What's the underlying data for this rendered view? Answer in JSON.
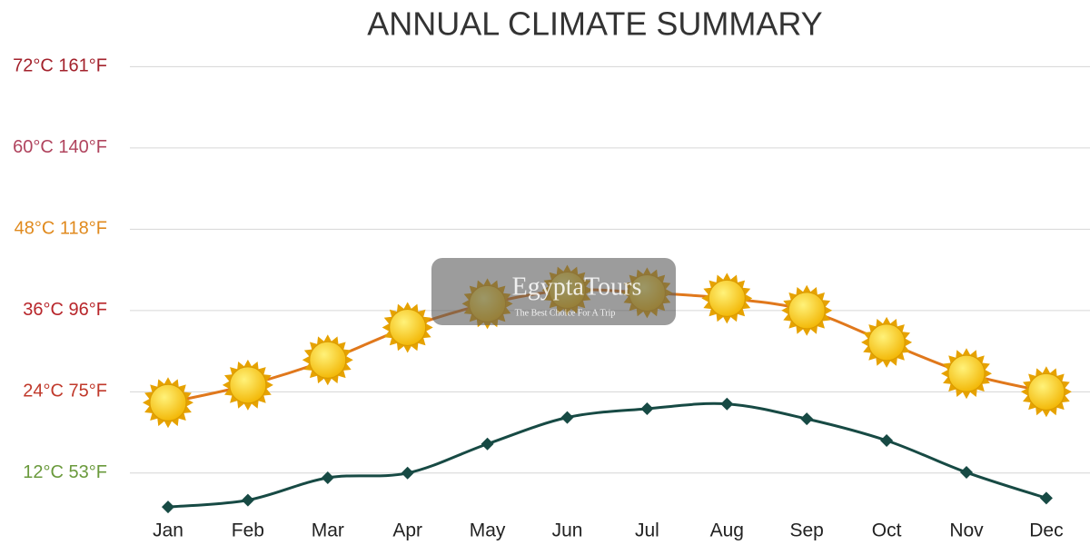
{
  "chart_data": {
    "type": "line",
    "title": "ANNUAL CLIMATE SUMMARY",
    "categories": [
      "Jan",
      "Feb",
      "Mar",
      "Apr",
      "May",
      "Jun",
      "Jul",
      "Aug",
      "Sep",
      "Oct",
      "Nov",
      "Dec"
    ],
    "series": [
      {
        "color": "#e0781c",
        "marker": "sun",
        "values": [
          22.4,
          25,
          28.7,
          33.5,
          37,
          39,
          38.6,
          37.8,
          36,
          31.3,
          26.7,
          24
        ]
      },
      {
        "color": "#174a44",
        "marker": "diamond",
        "values": [
          7,
          8,
          11.3,
          12,
          16.3,
          20.2,
          21.5,
          22.2,
          20,
          16.8,
          12.1,
          8.3
        ]
      }
    ],
    "ylim": [
      5,
      75
    ],
    "yticks": [
      {
        "value": 12,
        "label": "12°C 53°F",
        "color": "#6a9a3c"
      },
      {
        "value": 24,
        "label": "24°C 75°F",
        "color": "#c0392b"
      },
      {
        "value": 36,
        "label": "36°C 96°F",
        "color": "#b8262b"
      },
      {
        "value": 48,
        "label": "48°C 118°F",
        "color": "#e08a1e"
      },
      {
        "value": 60,
        "label": "60°C 140°F",
        "color": "#b0445e"
      },
      {
        "value": 72,
        "label": "72°C 161°F",
        "color": "#a3222c"
      }
    ],
    "grid": true,
    "watermark": {
      "name": "EgyptaTours",
      "tagline": "The Best Choice For A Trip"
    }
  }
}
